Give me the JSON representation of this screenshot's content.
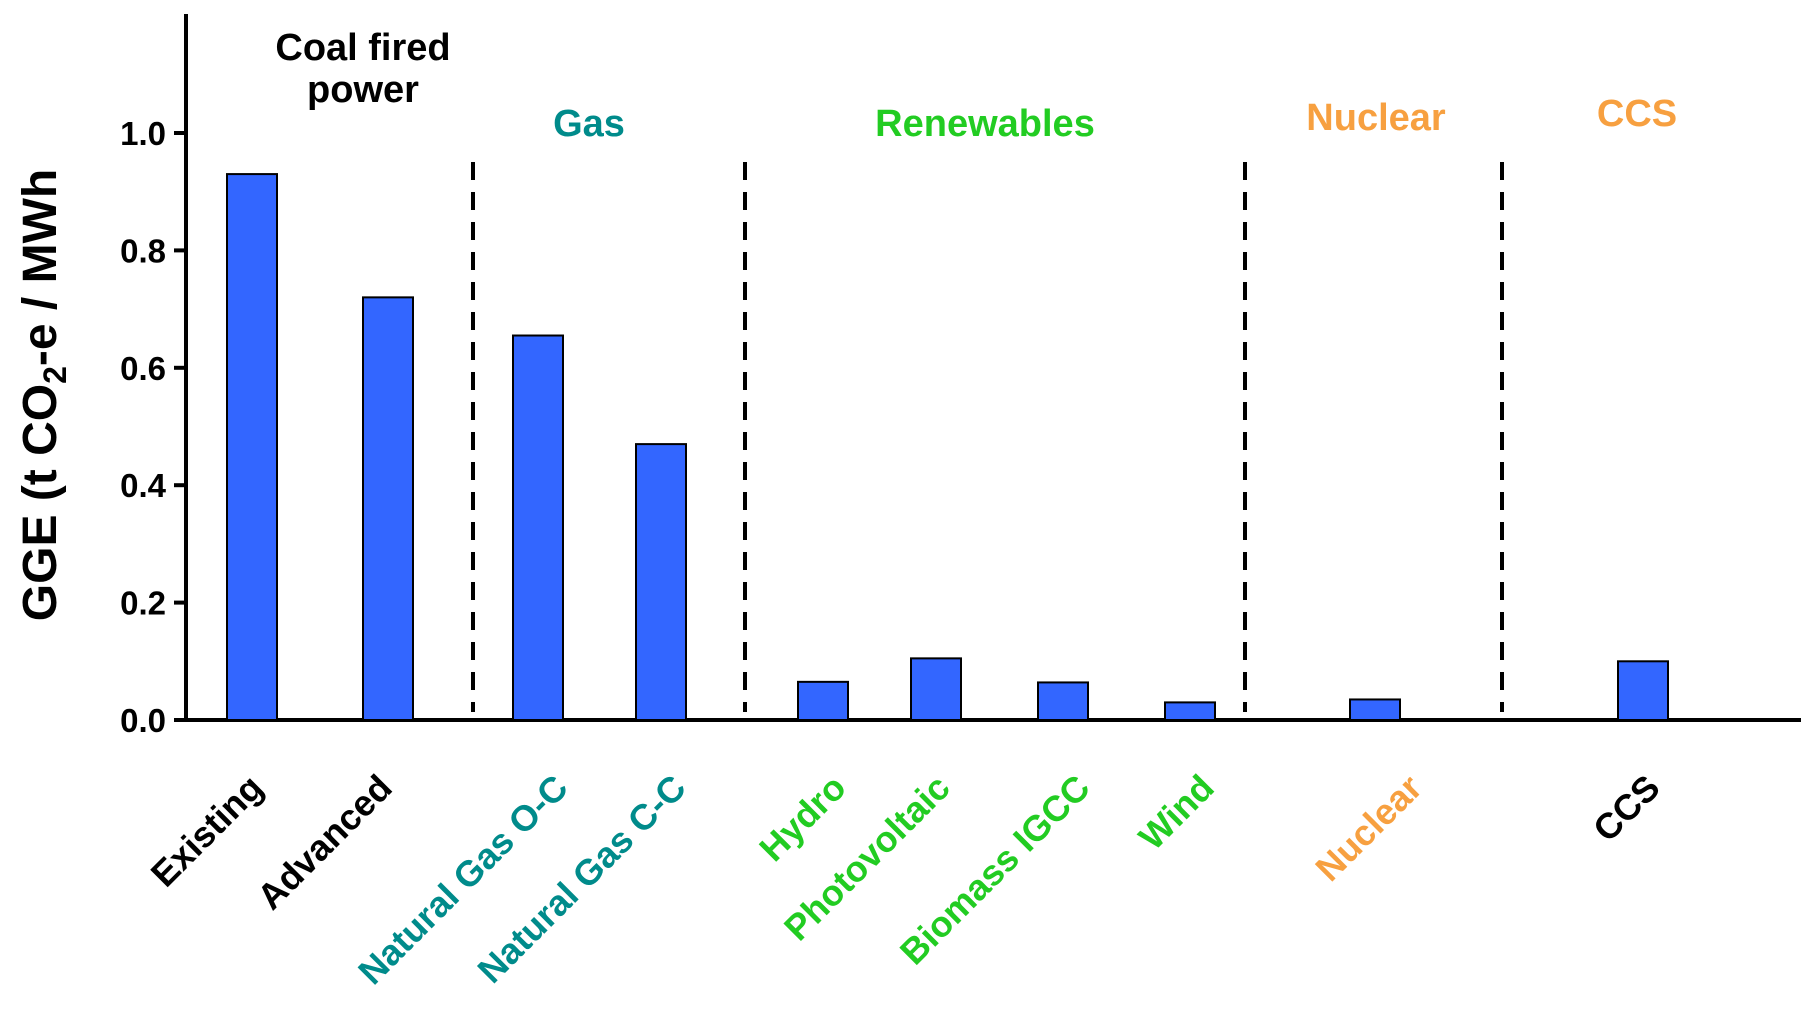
{
  "chart_data": {
    "type": "bar",
    "ylabel": {
      "prefix": "GGE (t CO",
      "subscript": "2",
      "suffix": "-e / MWh"
    },
    "ylim": [
      0,
      1.2
    ],
    "yticks": [
      "1.0",
      "0.8",
      "0.6",
      "0.4",
      "0.2",
      "0.0"
    ],
    "ytick_values": [
      1.0,
      0.8,
      0.6,
      0.4,
      0.2,
      0.0
    ],
    "grid": false,
    "bar_color": "#3366ff",
    "categories": [
      {
        "label": "Existing",
        "value": 0.93,
        "color": "#000000"
      },
      {
        "label": "Advanced",
        "value": 0.72,
        "color": "#000000"
      },
      {
        "label": "Natural Gas O-C",
        "value": 0.655,
        "color": "#008b8b"
      },
      {
        "label": "Natural Gas C-C",
        "value": 0.47,
        "color": "#008b8b"
      },
      {
        "label": "Hydro",
        "value": 0.065,
        "color": "#22cc22"
      },
      {
        "label": "Photovoltaic",
        "value": 0.105,
        "color": "#22cc22"
      },
      {
        "label": "Biomass IGCC",
        "value": 0.064,
        "color": "#22cc22"
      },
      {
        "label": "Wind",
        "value": 0.03,
        "color": "#22cc22"
      },
      {
        "label": "Nuclear",
        "value": 0.035,
        "color": "#f7a040"
      },
      {
        "label": "CCS",
        "value": 0.1,
        "color": "#000000"
      }
    ],
    "groups": [
      {
        "lines": [
          "Coal fired",
          "power"
        ],
        "color": "#000000"
      },
      {
        "lines": [
          "Gas"
        ],
        "color": "#008b8b"
      },
      {
        "lines": [
          "Renewables"
        ],
        "color": "#22cc22"
      },
      {
        "lines": [
          "Nuclear"
        ],
        "color": "#f7a040"
      },
      {
        "lines": [
          "CCS"
        ],
        "color": "#f7a040"
      }
    ]
  }
}
